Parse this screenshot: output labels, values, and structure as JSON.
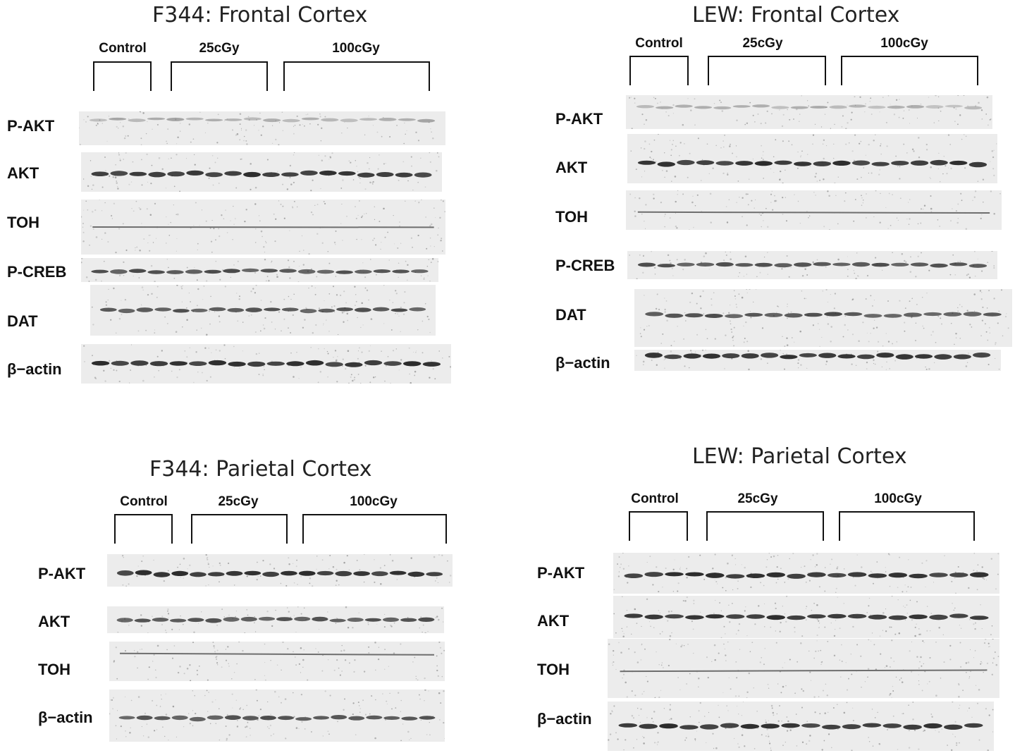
{
  "panels": [
    {
      "title": "F344: Frontal Cortex",
      "groups": [
        "Control",
        "25cGy",
        "100cGy"
      ],
      "rows": [
        "P-AKT",
        "AKT",
        "TOH",
        "P-CREB",
        "DAT",
        "β−actin"
      ]
    },
    {
      "title": "LEW: Frontal Cortex",
      "groups": [
        "Control",
        "25cGy",
        "100cGy"
      ],
      "rows": [
        "P-AKT",
        "AKT",
        "TOH",
        "P-CREB",
        "DAT",
        "β−actin"
      ]
    },
    {
      "title": "F344: Parietal Cortex",
      "groups": [
        "Control",
        "25cGy",
        "100cGy"
      ],
      "rows": [
        "P-AKT",
        "AKT",
        "TOH",
        "β−actin"
      ]
    },
    {
      "title": "LEW: Parietal Cortex",
      "groups": [
        "Control",
        "25cGy",
        "100cGy"
      ],
      "rows": [
        "P-AKT",
        "AKT",
        "TOH",
        "β−actin"
      ]
    }
  ],
  "colors": {
    "text": "#111111",
    "blot_background": "#ececec",
    "band": "#222222"
  }
}
